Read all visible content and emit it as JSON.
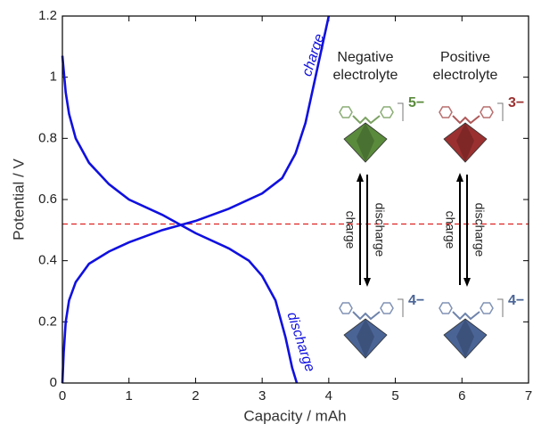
{
  "chart_data": {
    "type": "line",
    "xlabel": "Capacity / mAh",
    "ylabel": "Potential / V",
    "xlim": [
      0,
      7
    ],
    "ylim": [
      0,
      1.2
    ],
    "xticks": [
      0,
      1,
      2,
      3,
      4,
      5,
      6,
      7
    ],
    "yticks": [
      0,
      0.2,
      0.4,
      0.6,
      0.8,
      1,
      1.2
    ],
    "series": [
      {
        "name": "charge",
        "color": "#1010e0",
        "x": [
          0,
          0.02,
          0.05,
          0.1,
          0.2,
          0.4,
          0.7,
          1,
          1.5,
          2,
          2.5,
          3,
          3.3,
          3.5,
          3.65,
          3.8,
          3.9,
          4.0
        ],
        "values": [
          0,
          0.1,
          0.2,
          0.27,
          0.33,
          0.39,
          0.43,
          0.46,
          0.5,
          0.53,
          0.57,
          0.62,
          0.67,
          0.75,
          0.85,
          1.0,
          1.1,
          1.2
        ]
      },
      {
        "name": "discharge",
        "color": "#1010e0",
        "x": [
          0,
          0.05,
          0.1,
          0.2,
          0.4,
          0.7,
          1,
          1.5,
          2,
          2.5,
          2.8,
          3,
          3.2,
          3.35,
          3.45,
          3.52
        ],
        "values": [
          1.07,
          0.95,
          0.88,
          0.8,
          0.72,
          0.65,
          0.6,
          0.55,
          0.49,
          0.44,
          0.4,
          0.35,
          0.27,
          0.15,
          0.05,
          0
        ]
      }
    ],
    "reference_line": {
      "y": 0.52,
      "color": "#dd2222"
    },
    "panels": [
      {
        "title_lines": [
          "Negative",
          "electrolyte"
        ],
        "top_charge": "5−",
        "top_color": "#5a8a3c",
        "bottom_charge": "4−",
        "bottom_color": "#4a6496",
        "up_label": "charge",
        "down_label": "discharge"
      },
      {
        "title_lines": [
          "Positive",
          "electrolyte"
        ],
        "top_charge": "3−",
        "top_color": "#9b3030",
        "bottom_charge": "4−",
        "bottom_color": "#4a6496",
        "up_label": "charge",
        "down_label": "discharge"
      }
    ]
  }
}
